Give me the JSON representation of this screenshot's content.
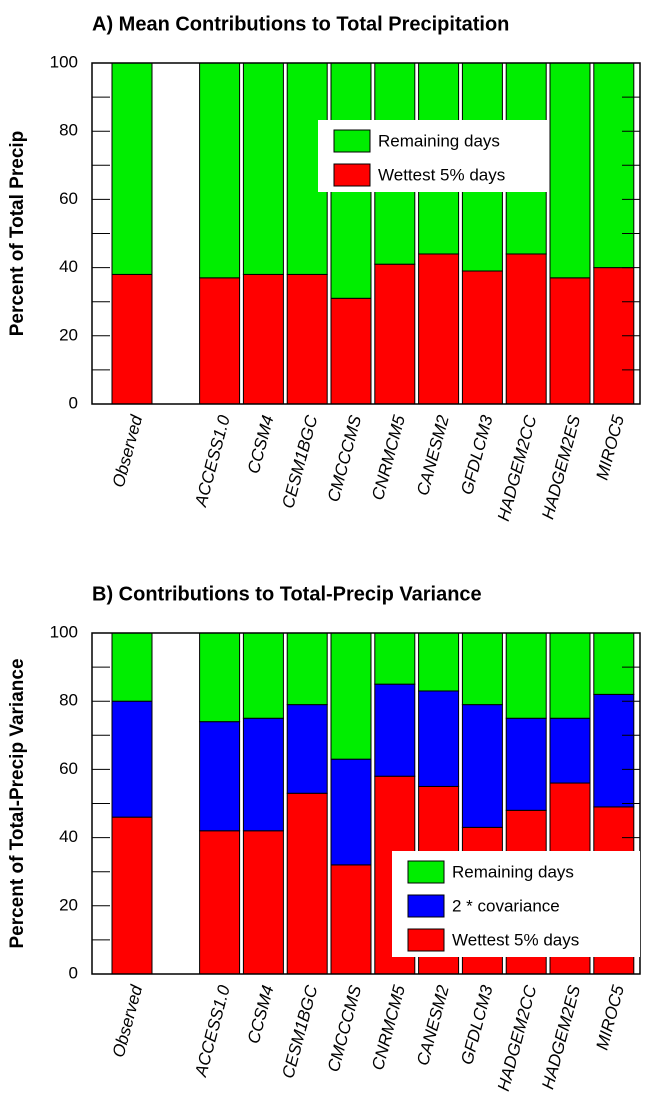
{
  "chart_data": [
    {
      "type": "stacked-bar",
      "title": "A) Mean Contributions to Total Precipitation",
      "ylabel": "Percent of Total Precip",
      "categories": [
        "Observed",
        null,
        "ACCESS1.0",
        "CCSM4",
        "CESM1BGC",
        "CMCCCMS",
        "CNRMCM5",
        "CANESM2",
        "GFDLCM3",
        "HADGEM2CC",
        "HADGEM2ES",
        "MIROC5"
      ],
      "series": [
        {
          "name": "Wettest 5% days",
          "color": "#ff0000",
          "values": [
            38,
            null,
            37,
            38,
            38,
            31,
            41,
            44,
            39,
            44,
            37,
            40
          ]
        },
        {
          "name": "Remaining days",
          "color": "#00ee00",
          "values": [
            62,
            null,
            63,
            62,
            62,
            69,
            59,
            56,
            61,
            56,
            63,
            60
          ]
        }
      ],
      "ylim": [
        0,
        100
      ],
      "yticks": [
        0,
        20,
        40,
        60,
        80,
        100
      ],
      "yminorticks": [
        10,
        30,
        50,
        70,
        90
      ],
      "legend": "upper right"
    },
    {
      "type": "stacked-bar",
      "title": "B) Contributions to Total-Precip Variance",
      "ylabel": "Percent of Total-Precip Variance",
      "categories": [
        "Observed",
        null,
        "ACCESS1.0",
        "CCSM4",
        "CESM1BGC",
        "CMCCCMS",
        "CNRMCM5",
        "CANESM2",
        "GFDLCM3",
        "HADGEM2CC",
        "HADGEM2ES",
        "MIROC5"
      ],
      "series": [
        {
          "name": "Wettest 5% days",
          "color": "#ff0000",
          "values": [
            46,
            null,
            42,
            42,
            53,
            32,
            58,
            55,
            43,
            48,
            56,
            49
          ]
        },
        {
          "name": "2 * covariance",
          "color": "#0000ff",
          "values": [
            34,
            null,
            32,
            33,
            26,
            31,
            27,
            28,
            36,
            27,
            19,
            33
          ]
        },
        {
          "name": "Remaining days",
          "color": "#00ee00",
          "values": [
            20,
            null,
            26,
            25,
            21,
            37,
            15,
            17,
            21,
            25,
            25,
            18
          ]
        }
      ],
      "ylim": [
        0,
        100
      ],
      "yticks": [
        0,
        20,
        40,
        60,
        80,
        100
      ],
      "yminorticks": [
        10,
        30,
        50,
        70,
        90
      ],
      "legend": "lower right"
    }
  ]
}
